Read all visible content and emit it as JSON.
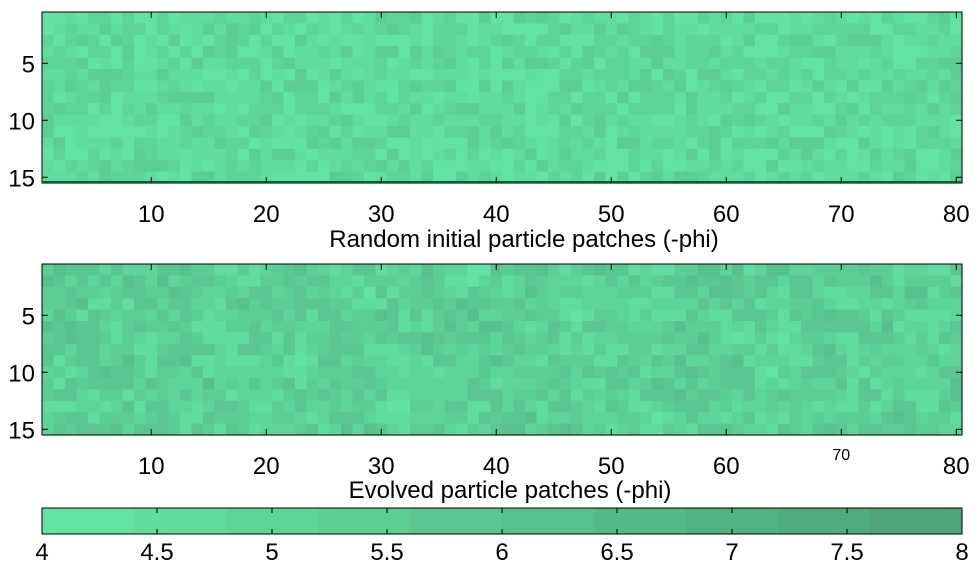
{
  "chart_data": [
    {
      "type": "heatmap",
      "title": "",
      "xlabel": "Random initial particle patches (-phi)",
      "ylabel": "",
      "cols": 80,
      "rows": 15,
      "xlim": [
        0.5,
        80.5
      ],
      "ylim": [
        0.5,
        15.5
      ],
      "xticks": [
        10,
        20,
        30,
        40,
        50,
        60,
        70,
        80
      ],
      "yticks": [
        5,
        10,
        15
      ],
      "value_range": [
        4,
        5.4
      ],
      "seed": 11,
      "smoothing": 0,
      "grid": false
    },
    {
      "type": "heatmap",
      "title": "",
      "xlabel": "Evolved particle patches (-phi)",
      "ylabel": "",
      "cols": 80,
      "rows": 15,
      "xlim": [
        0.5,
        80.5
      ],
      "ylim": [
        0.5,
        15.5
      ],
      "xticks": [
        10,
        20,
        30,
        40,
        50,
        60,
        70,
        80
      ],
      "yticks": [
        5,
        10,
        15
      ],
      "value_range": [
        4,
        6.6
      ],
      "seed": 29,
      "smoothing": 1,
      "grid": false
    }
  ],
  "colorbar": {
    "min": 4,
    "max": 8,
    "ticks": [
      "4",
      "4.5",
      "5",
      "5.5",
      "6",
      "6.5",
      "7",
      "7.5",
      "8"
    ],
    "levels": 10,
    "color_low": "#62E3A2",
    "color_high": "#4DA577"
  },
  "colors": {
    "axis": "#000000",
    "bottom_edge_first_panel": "#006633"
  }
}
